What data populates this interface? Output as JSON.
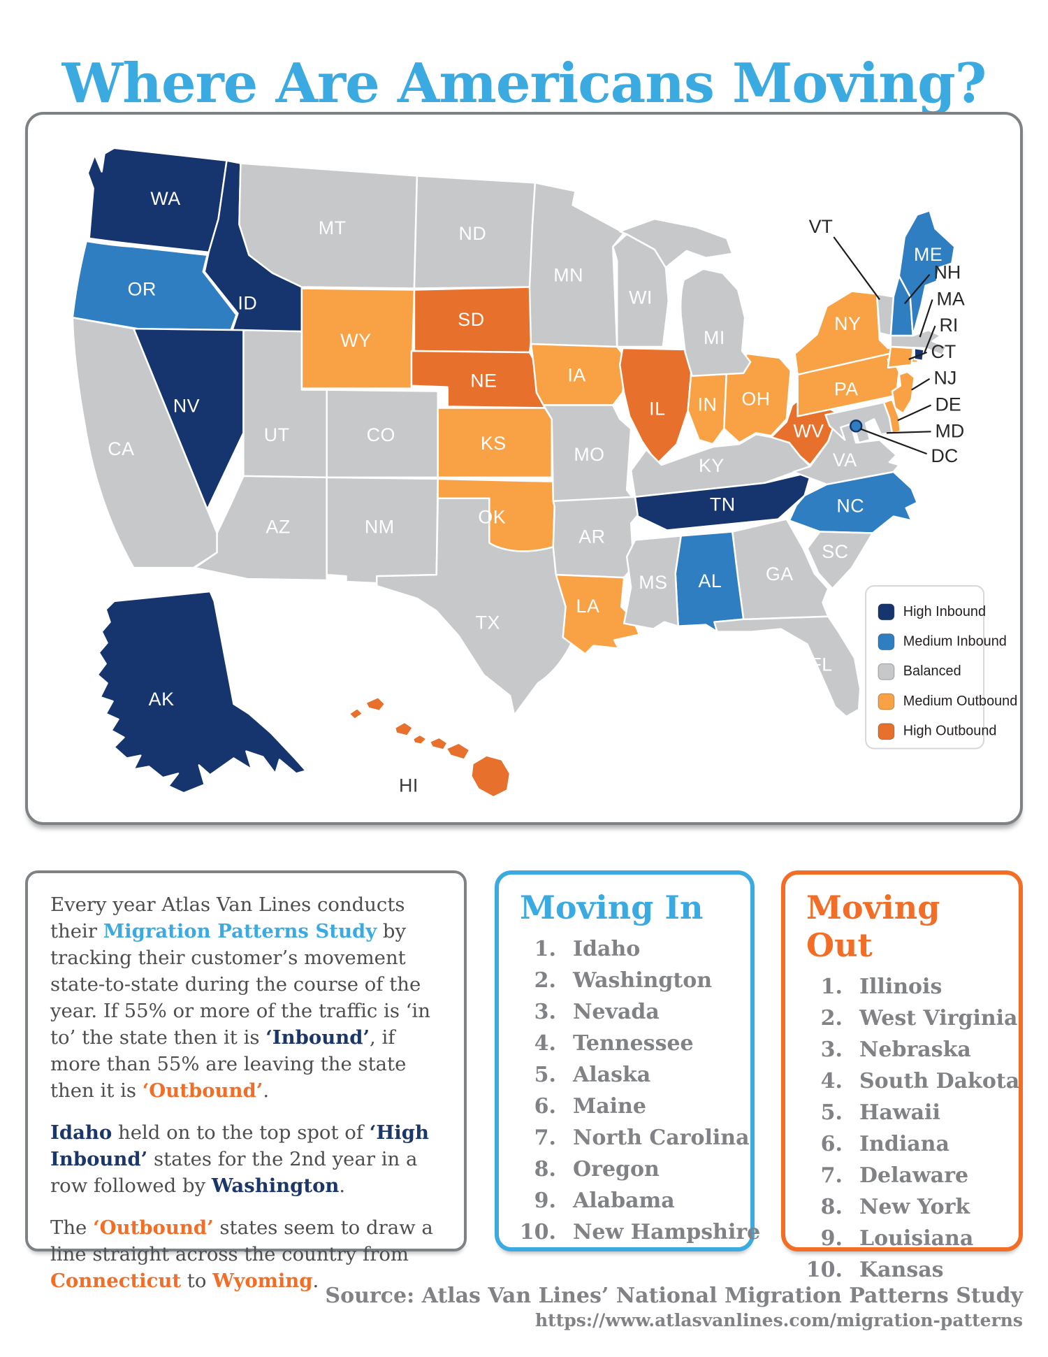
{
  "title": "Where Are Americans Moving?",
  "legend": {
    "items": [
      {
        "key": "high_inbound",
        "label": "High Inbound",
        "color": "#16356E"
      },
      {
        "key": "medium_inbound",
        "label": "Medium Inbound",
        "color": "#2E7EC1"
      },
      {
        "key": "balanced",
        "label": "Balanced",
        "color": "#C7C8CA"
      },
      {
        "key": "medium_outbound",
        "label": "Medium Outbound",
        "color": "#F9A245"
      },
      {
        "key": "high_outbound",
        "label": "High Outbound",
        "color": "#E7702C"
      }
    ]
  },
  "map": {
    "states": {
      "WA": {
        "label": "WA",
        "category": "high_inbound"
      },
      "OR": {
        "label": "OR",
        "category": "medium_inbound"
      },
      "CA": {
        "label": "CA",
        "category": "balanced"
      },
      "NV": {
        "label": "NV",
        "category": "high_inbound"
      },
      "ID": {
        "label": "ID",
        "category": "high_inbound"
      },
      "UT": {
        "label": "UT",
        "category": "balanced"
      },
      "AZ": {
        "label": "AZ",
        "category": "balanced"
      },
      "MT": {
        "label": "MT",
        "category": "balanced"
      },
      "WY": {
        "label": "WY",
        "category": "medium_outbound"
      },
      "CO": {
        "label": "CO",
        "category": "balanced"
      },
      "NM": {
        "label": "NM",
        "category": "balanced"
      },
      "ND": {
        "label": "ND",
        "category": "balanced"
      },
      "SD": {
        "label": "SD",
        "category": "high_outbound"
      },
      "NE": {
        "label": "NE",
        "category": "high_outbound"
      },
      "KS": {
        "label": "KS",
        "category": "medium_outbound"
      },
      "OK": {
        "label": "OK",
        "category": "medium_outbound"
      },
      "TX": {
        "label": "TX",
        "category": "balanced"
      },
      "MN": {
        "label": "MN",
        "category": "balanced"
      },
      "IA": {
        "label": "IA",
        "category": "medium_outbound"
      },
      "MO": {
        "label": "MO",
        "category": "balanced"
      },
      "AR": {
        "label": "AR",
        "category": "balanced"
      },
      "LA": {
        "label": "LA",
        "category": "medium_outbound"
      },
      "WI": {
        "label": "WI",
        "category": "balanced"
      },
      "IL": {
        "label": "IL",
        "category": "high_outbound"
      },
      "MI": {
        "label": "MI",
        "category": "balanced"
      },
      "IN": {
        "label": "IN",
        "category": "medium_outbound"
      },
      "OH": {
        "label": "OH",
        "category": "medium_outbound"
      },
      "KY": {
        "label": "KY",
        "category": "balanced"
      },
      "TN": {
        "label": "TN",
        "category": "high_inbound"
      },
      "MS": {
        "label": "MS",
        "category": "balanced"
      },
      "AL": {
        "label": "AL",
        "category": "medium_inbound"
      },
      "GA": {
        "label": "GA",
        "category": "balanced"
      },
      "FL": {
        "label": "FL",
        "category": "balanced"
      },
      "SC": {
        "label": "SC",
        "category": "balanced"
      },
      "NC": {
        "label": "NC",
        "category": "medium_inbound"
      },
      "VA": {
        "label": "VA",
        "category": "balanced"
      },
      "WV": {
        "label": "WV",
        "category": "high_outbound"
      },
      "PA": {
        "label": "PA",
        "category": "medium_outbound"
      },
      "NY": {
        "label": "NY",
        "category": "medium_outbound"
      },
      "ME": {
        "label": "ME",
        "category": "medium_inbound"
      },
      "VT": {
        "label": "VT",
        "category": "balanced"
      },
      "NH": {
        "label": "NH",
        "category": "medium_inbound"
      },
      "MA": {
        "label": "MA",
        "category": "balanced"
      },
      "RI": {
        "label": "RI",
        "category": "high_inbound"
      },
      "CT": {
        "label": "CT",
        "category": "medium_outbound"
      },
      "NJ": {
        "label": "NJ",
        "category": "medium_outbound"
      },
      "DE": {
        "label": "DE",
        "category": "medium_outbound"
      },
      "MD": {
        "label": "MD",
        "category": "balanced"
      },
      "DC": {
        "label": "DC",
        "category": "medium_inbound"
      },
      "AK": {
        "label": "AK",
        "category": "high_inbound"
      },
      "HI": {
        "label": "HI",
        "category": "high_outbound"
      }
    }
  },
  "about": {
    "paragraphs": [
      [
        {
          "t": "Every year Atlas Van Lines conducts their ",
          "s": "plain"
        },
        {
          "t": "Migration Patterns Study",
          "s": "blue"
        },
        {
          "t": " by tracking their customer’s movement state-to-state during the course of the year. If 55% or more of the traffic is ‘in to’ the state then it is ",
          "s": "plain"
        },
        {
          "t": "‘Inbound’",
          "s": "navy"
        },
        {
          "t": ", if more than 55% are leaving the state then it is ",
          "s": "plain"
        },
        {
          "t": "‘Outbound’",
          "s": "orange"
        },
        {
          "t": ".",
          "s": "plain"
        }
      ],
      [
        {
          "t": "Idaho",
          "s": "navy"
        },
        {
          "t": " held on to the top spot of ",
          "s": "plain"
        },
        {
          "t": "‘High Inbound’",
          "s": "navy"
        },
        {
          "t": " states for the 2nd year in a row followed by ",
          "s": "plain"
        },
        {
          "t": "Washington",
          "s": "navy"
        },
        {
          "t": ".",
          "s": "plain"
        }
      ],
      [
        {
          "t": "The ",
          "s": "plain"
        },
        {
          "t": "‘Outbound’",
          "s": "orange"
        },
        {
          "t": " states seem to draw a line straight across the country from ",
          "s": "plain"
        },
        {
          "t": "Connecticut",
          "s": "orange"
        },
        {
          "t": " to ",
          "s": "plain"
        },
        {
          "t": "Wyoming",
          "s": "orange"
        },
        {
          "t": ".",
          "s": "plain"
        }
      ]
    ]
  },
  "moving_in": {
    "title": "Moving In",
    "items": [
      "Idaho",
      "Washington",
      "Nevada",
      "Tennessee",
      "Alaska",
      "Maine",
      "North Carolina",
      "Oregon",
      "Alabama",
      "New Hampshire"
    ]
  },
  "moving_out": {
    "title": "Moving Out",
    "items": [
      "Illinois",
      "West Virginia",
      "Nebraska",
      "South Dakota",
      "Hawaii",
      "Indiana",
      "Delaware",
      "New York",
      "Louisiana",
      "Kansas"
    ]
  },
  "source": {
    "line1": "Source: Atlas Van Lines’ National Migration Patterns Study",
    "line2": "https://www.atlasvanlines.com/migration-patterns"
  }
}
